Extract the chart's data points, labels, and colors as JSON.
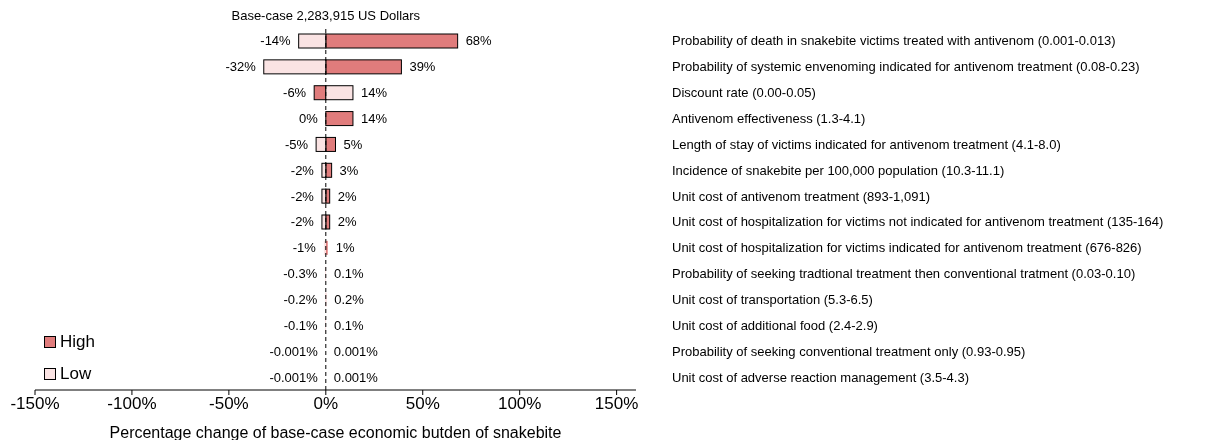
{
  "chart_data": {
    "type": "bar",
    "orientation": "horizontal",
    "title": "Base-case 2,283,915 US Dollars",
    "xlabel": "Percentage change of base-case economic butden of snakebite",
    "categories": [
      "Probability of death in snakebite victims treated with antivenom (0.001-0.013)",
      "Probability of systemic envenoming indicated for antivenom treatment (0.08-0.23)",
      "Discount rate (0.00-0.05)",
      "Antivenom effectiveness (1.3-4.1)",
      "Length of stay of victims indicated for antivenom treatment (4.1-8.0)",
      "Incidence of snakebite per 100,000 population (10.3-11.1)",
      "Unit cost of antivenom treatment (893-1,091)",
      "Unit cost of hospitalization for victims not indicated for antivenom treatment (135-164)",
      "Unit cost of hospitalization for victims  indicated for antivenom treatment (676-826)",
      "Probability of seeking tradtional treatment then conventional tratment (0.03-0.10)",
      "Unit cost of transportation (5.3-6.5)",
      "Unit cost of additional food (2.4-2.9)",
      "Probability of seeking conventional treatment only (0.93-0.95)",
      "Unit cost of adverse reaction management (3.5-4.3)"
    ],
    "series": [
      {
        "name": "High",
        "color": "#e07c7c",
        "values": [
          68,
          39,
          -6,
          14,
          5,
          3,
          2,
          2,
          1,
          0.1,
          0.2,
          0.1,
          0.001,
          0.001
        ],
        "value_labels": [
          "68%",
          "39%",
          "-6%",
          "14%",
          "5%",
          "3%",
          "2%",
          "2%",
          "1%",
          "0.1%",
          "0.2%",
          "0.1%",
          "0.001%",
          "0.001%"
        ]
      },
      {
        "name": "Low",
        "color": "#fae3e3",
        "values": [
          -14,
          -32,
          14,
          0,
          -5,
          -2,
          -2,
          -2,
          -1,
          -0.3,
          -0.2,
          -0.1,
          -0.001,
          -0.001
        ],
        "value_labels": [
          "-14%",
          "-32%",
          "14%",
          "0%",
          "-5%",
          "-2%",
          "-2%",
          "-2%",
          "-1%",
          "-0.3%",
          "-0.2%",
          "-0.1%",
          "-0.001%",
          "-0.001%"
        ]
      }
    ],
    "xlim": [
      -150,
      160
    ],
    "xticks": [
      {
        "value": -150,
        "label": "-150%"
      },
      {
        "value": -100,
        "label": "-100%"
      },
      {
        "value": -50,
        "label": "-50%"
      },
      {
        "value": 0,
        "label": "0%"
      },
      {
        "value": 50,
        "label": "50%"
      },
      {
        "value": 100,
        "label": "100%"
      },
      {
        "value": 150,
        "label": "150%"
      }
    ],
    "ref_lines": [
      {
        "axis": "x",
        "value": 0,
        "color": "#000000",
        "line_style": "dashed"
      }
    ],
    "stacked": true,
    "legend": "bottom left",
    "grid": false
  }
}
